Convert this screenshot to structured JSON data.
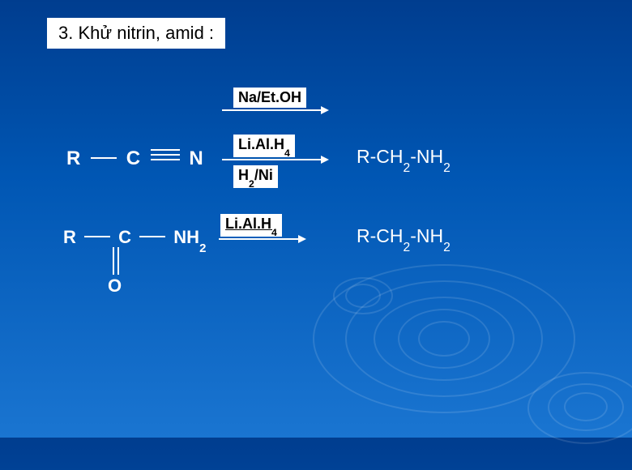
{
  "slide": {
    "title": "3. Khử nitrin, amid :",
    "background_gradient": [
      "#003d8f",
      "#0056b3",
      "#1a75d1"
    ],
    "text_color": "#ffffff",
    "box_bg": "#ffffff",
    "box_text": "#000000",
    "title_fontsize": 22,
    "reagent_fontsize": 18,
    "formula_fontsize": 23
  },
  "reaction1": {
    "type": "reduction",
    "reactant": {
      "R": "R",
      "bond": "triple",
      "C": "C",
      "N": "N"
    },
    "reagents": {
      "top_arrow": "Na/Et.OH",
      "mid_label1": "Li.Al.H",
      "mid_label1_sub": "4",
      "mid_label2_a": "H",
      "mid_label2_sub": "2",
      "mid_label2_b": "/Ni"
    },
    "product_parts": {
      "a": "R-CH",
      "s1": "2",
      "b": "-NH",
      "s2": "2"
    }
  },
  "reaction2": {
    "type": "reduction",
    "reactant": {
      "R": "R",
      "C": "C",
      "NH2_a": "NH",
      "NH2_sub": "2",
      "O": "O"
    },
    "reagent": {
      "a": "Li.Al.H",
      "sub": "4"
    },
    "product_parts": {
      "a": "R-CH",
      "s1": "2",
      "b": "-NH",
      "s2": "2"
    }
  }
}
